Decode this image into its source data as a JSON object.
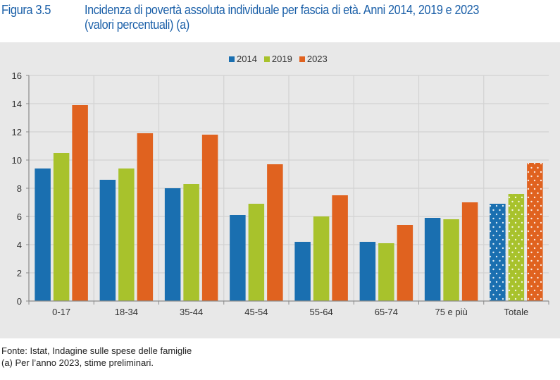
{
  "header": {
    "figure_label": "Figura 3.5",
    "title_line1": "Incidenza di povertà assoluta individuale per fascia di età. Anni 2014, 2019 e 2023",
    "title_line2": "(valori percentuali) (a)"
  },
  "footer": {
    "source": "Fonte: Istat, Indagine sulle spese delle famiglie",
    "note": "(a) Per l’anno 2023, stime preliminari."
  },
  "chart_data": {
    "type": "bar",
    "title": "Incidenza di povertà assoluta individuale per fascia di età. Anni 2014, 2019 e 2023",
    "xlabel": "",
    "ylabel": "",
    "ylim": [
      0,
      16
    ],
    "yticks": [
      0,
      2,
      4,
      6,
      8,
      10,
      12,
      14,
      16
    ],
    "grid": true,
    "legend_position": "top-center",
    "categories": [
      "0-17",
      "18-34",
      "35-44",
      "45-54",
      "55-64",
      "65-74",
      "75 e più",
      "Totale"
    ],
    "series": [
      {
        "name": "2014",
        "color": "#1a6fb0",
        "values": [
          9.4,
          8.6,
          8.0,
          6.1,
          4.2,
          4.2,
          5.9,
          6.9
        ]
      },
      {
        "name": "2019",
        "color": "#a8c22c",
        "values": [
          10.5,
          9.4,
          8.3,
          6.9,
          6.0,
          4.1,
          5.8,
          7.6
        ]
      },
      {
        "name": "2023",
        "color": "#e0621f",
        "values": [
          13.9,
          11.9,
          11.8,
          9.7,
          7.5,
          5.4,
          7.0,
          9.8
        ]
      }
    ]
  }
}
